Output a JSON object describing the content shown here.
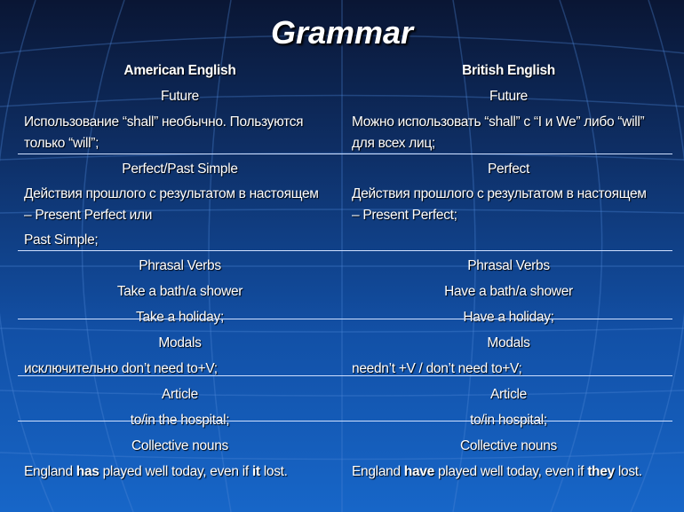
{
  "title": "Grammar",
  "headers": {
    "left": "American English",
    "right": "British English"
  },
  "rows": {
    "future": {
      "left": "Future",
      "right": "Future"
    },
    "future_desc": {
      "left1": "Использование “shall” необычно. Пользуются",
      "left2": "только “will”;",
      "right1": "Можно использовать “shall” с “I и We” либо “will”",
      "right2": "для всех лиц;"
    },
    "perfect": {
      "left": "Perfect/Past Simple",
      "right": "Perfect"
    },
    "perfect_desc": {
      "left1": "Действия прошлого с результатом в настоящем",
      "left2": "– Present Perfect или",
      "left3": "Past Simple;",
      "right1": "Действия прошлого с результатом в настоящем",
      "right2": "– Present Perfect;"
    },
    "phrasal": {
      "left": "Phrasal Verbs",
      "right": "Phrasal Verbs"
    },
    "bath": {
      "left": "Take a bath/a shower",
      "right": "Have a bath/a shower"
    },
    "holiday": {
      "left": "Take a holiday;",
      "right": "Have a holiday;"
    },
    "modals": {
      "left": "Modals",
      "right": "Modals"
    },
    "modals_desc": {
      "left": "исключительно don’t need to+V;",
      "right": "needn’t +V / don’t need to+V;"
    },
    "article": {
      "left": "Article",
      "right": "Article"
    },
    "hospital": {
      "left": "to/in the hospital;",
      "right": "to/in hospital;"
    },
    "collective": {
      "left": "Collective nouns",
      "right": "Collective nouns"
    },
    "england": {
      "left": {
        "a": "England ",
        "b": "has",
        "c": " played well today, even if ",
        "d": "it",
        "e": " lost."
      },
      "right": {
        "a": "England ",
        "b": "have",
        "c": " played well today, even if ",
        "d": "they",
        "e": " lost."
      }
    }
  }
}
